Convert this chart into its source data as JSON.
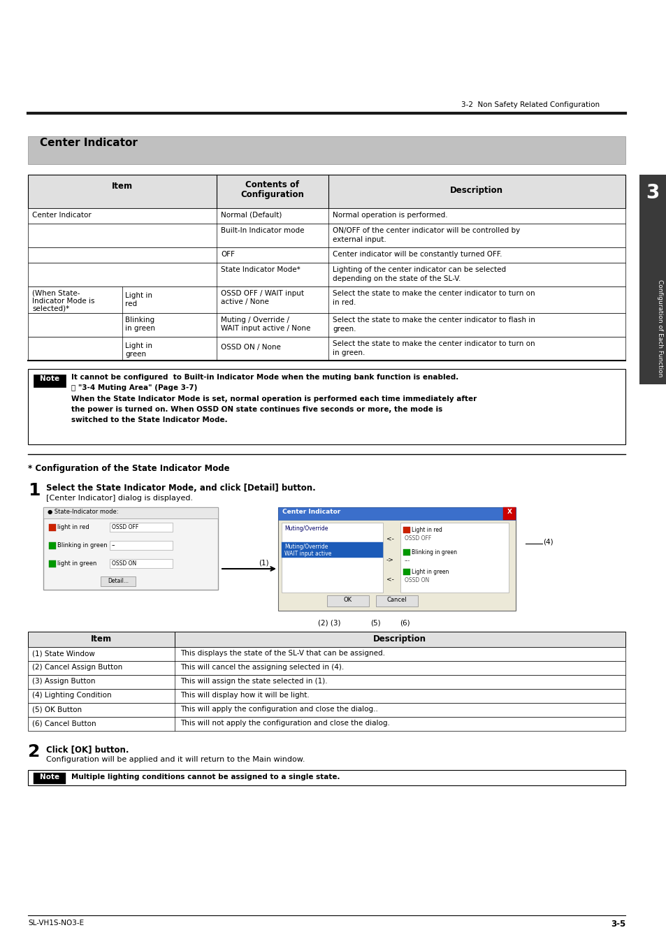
{
  "page_header_right": "3-2  Non Safety Related Configuration",
  "section_title": "Center Indicator",
  "note_text1": "It cannot be configured  to Built-in Indicator Mode when the muting bank function is enabled.",
  "note_text2": "⎙ \"3-4 Muting Area\" (Page 3-7)",
  "note_text3a": "When the State Indicator Mode is set, normal operation is performed each time immediately after",
  "note_text3b": "the power is turned on. When OSSD ON state continues five seconds or more, the mode is",
  "note_text3c": "switched to the State Indicator Mode.",
  "config_title": "* Configuration of the State Indicator Mode",
  "step1_num": "1",
  "step1_text": "Select the State Indicator Mode, and click [Detail] button.",
  "step1_sub": "[Center Indicator] dialog is displayed.",
  "step2_num": "2",
  "step2_text": "Click [OK] button.",
  "step2_sub": "Configuration will be applied and it will return to the Main window.",
  "note2_text": "Multiple lighting conditions cannot be assigned to a single state.",
  "table2_rows": [
    [
      "(1) State Window",
      "This displays the state of the SL-V that can be assigned."
    ],
    [
      "(2) Cancel Assign Button",
      "This will cancel the assigning selected in (4)."
    ],
    [
      "(3) Assign Button",
      "This will assign the state selected in (1)."
    ],
    [
      "(4) Lighting Condition",
      "This will display how it will be light."
    ],
    [
      "(5) OK Button",
      "This will apply the configuration and close the dialog.."
    ],
    [
      "(6) Cancel Button",
      "This will not apply the configuration and close the dialog."
    ]
  ],
  "footer_left": "SL-VH1S-NO3-E",
  "footer_right": "3-5",
  "tab_text": "3",
  "tab_subtext": "Configuration of Each Function"
}
